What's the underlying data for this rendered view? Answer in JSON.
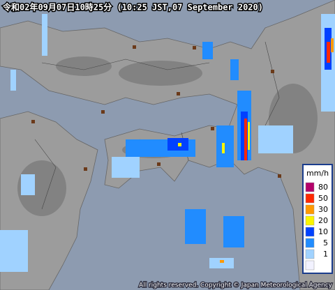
{
  "header": {
    "title": "令和02年09月07日10時25分  (10:25 JST,07 September 2020)"
  },
  "legend": {
    "unit": "mm/h",
    "labels": [
      "80",
      "50",
      "30",
      "20",
      "10",
      "5",
      "1"
    ],
    "colors": [
      "#b4006a",
      "#ff2800",
      "#ff9900",
      "#faf500",
      "#0041ff",
      "#218cff",
      "#a0d2ff",
      "#f2f2ff"
    ]
  },
  "footer": {
    "copyright": "All rights reserved. Copyright © Japan Meteorological Agency"
  }
}
